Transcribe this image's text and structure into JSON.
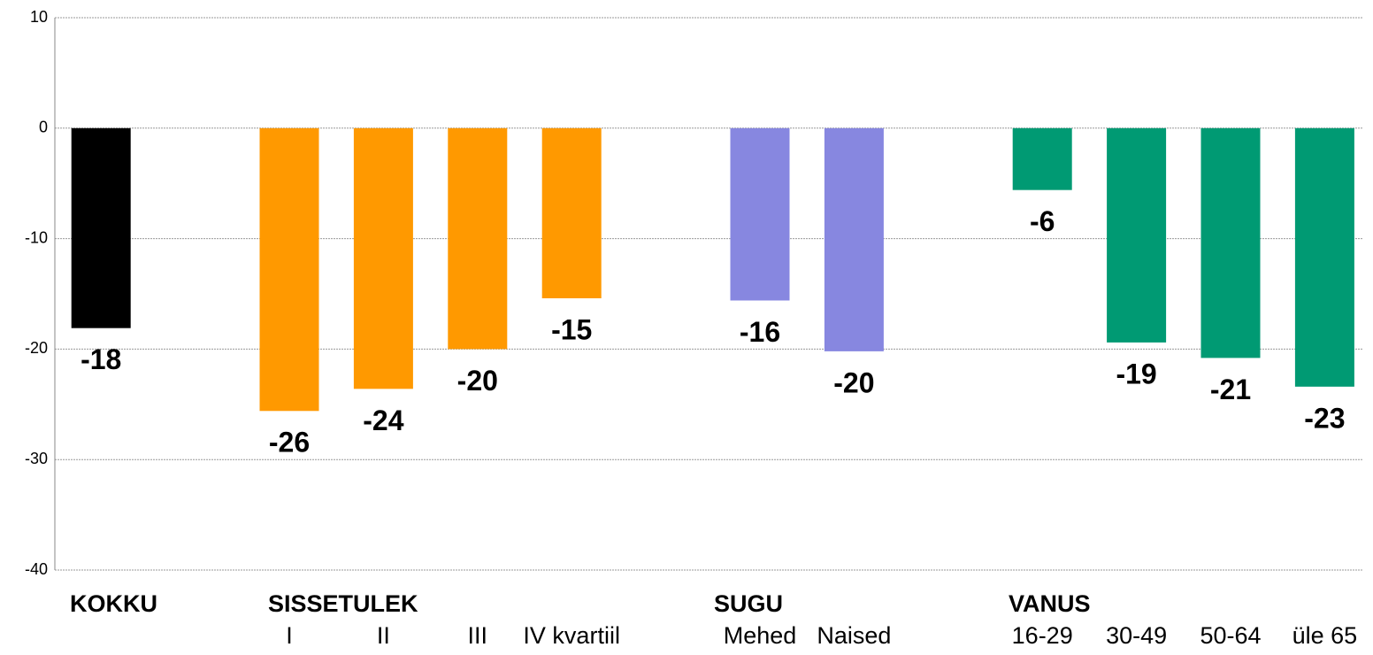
{
  "chart_data": {
    "type": "bar",
    "categories": [
      null,
      null,
      "I",
      "II",
      "III",
      "IV kvartiil",
      null,
      "Mehed",
      "Naised",
      null,
      "16-29",
      "30-49",
      "50-64",
      "üle 65"
    ],
    "values": [
      -18.1,
      null,
      -25.6,
      -23.6,
      -20.0,
      -15.4,
      null,
      -15.6,
      -20.2,
      null,
      -5.6,
      -19.4,
      -20.8,
      -23.4
    ],
    "value_labels": [
      "-18",
      null,
      "-26",
      "-24",
      "-20",
      "-15",
      null,
      "-16",
      "-20",
      null,
      "-6",
      "-19",
      "-21",
      "-23"
    ],
    "colors": [
      "#000000",
      null,
      "#ff9900",
      "#ff9900",
      "#ff9900",
      "#ff9900",
      null,
      "#8787e0",
      "#8787e0",
      null,
      "#009a73",
      "#009a73",
      "#009a73",
      "#009a73"
    ],
    "groups": [
      "KOKKU",
      "SISSETULEK",
      "SUGU",
      "VANUS"
    ],
    "ylim": [
      -40,
      10
    ],
    "yticks": [
      -40,
      -30,
      -20,
      -10,
      0,
      10
    ],
    "grid": true
  }
}
